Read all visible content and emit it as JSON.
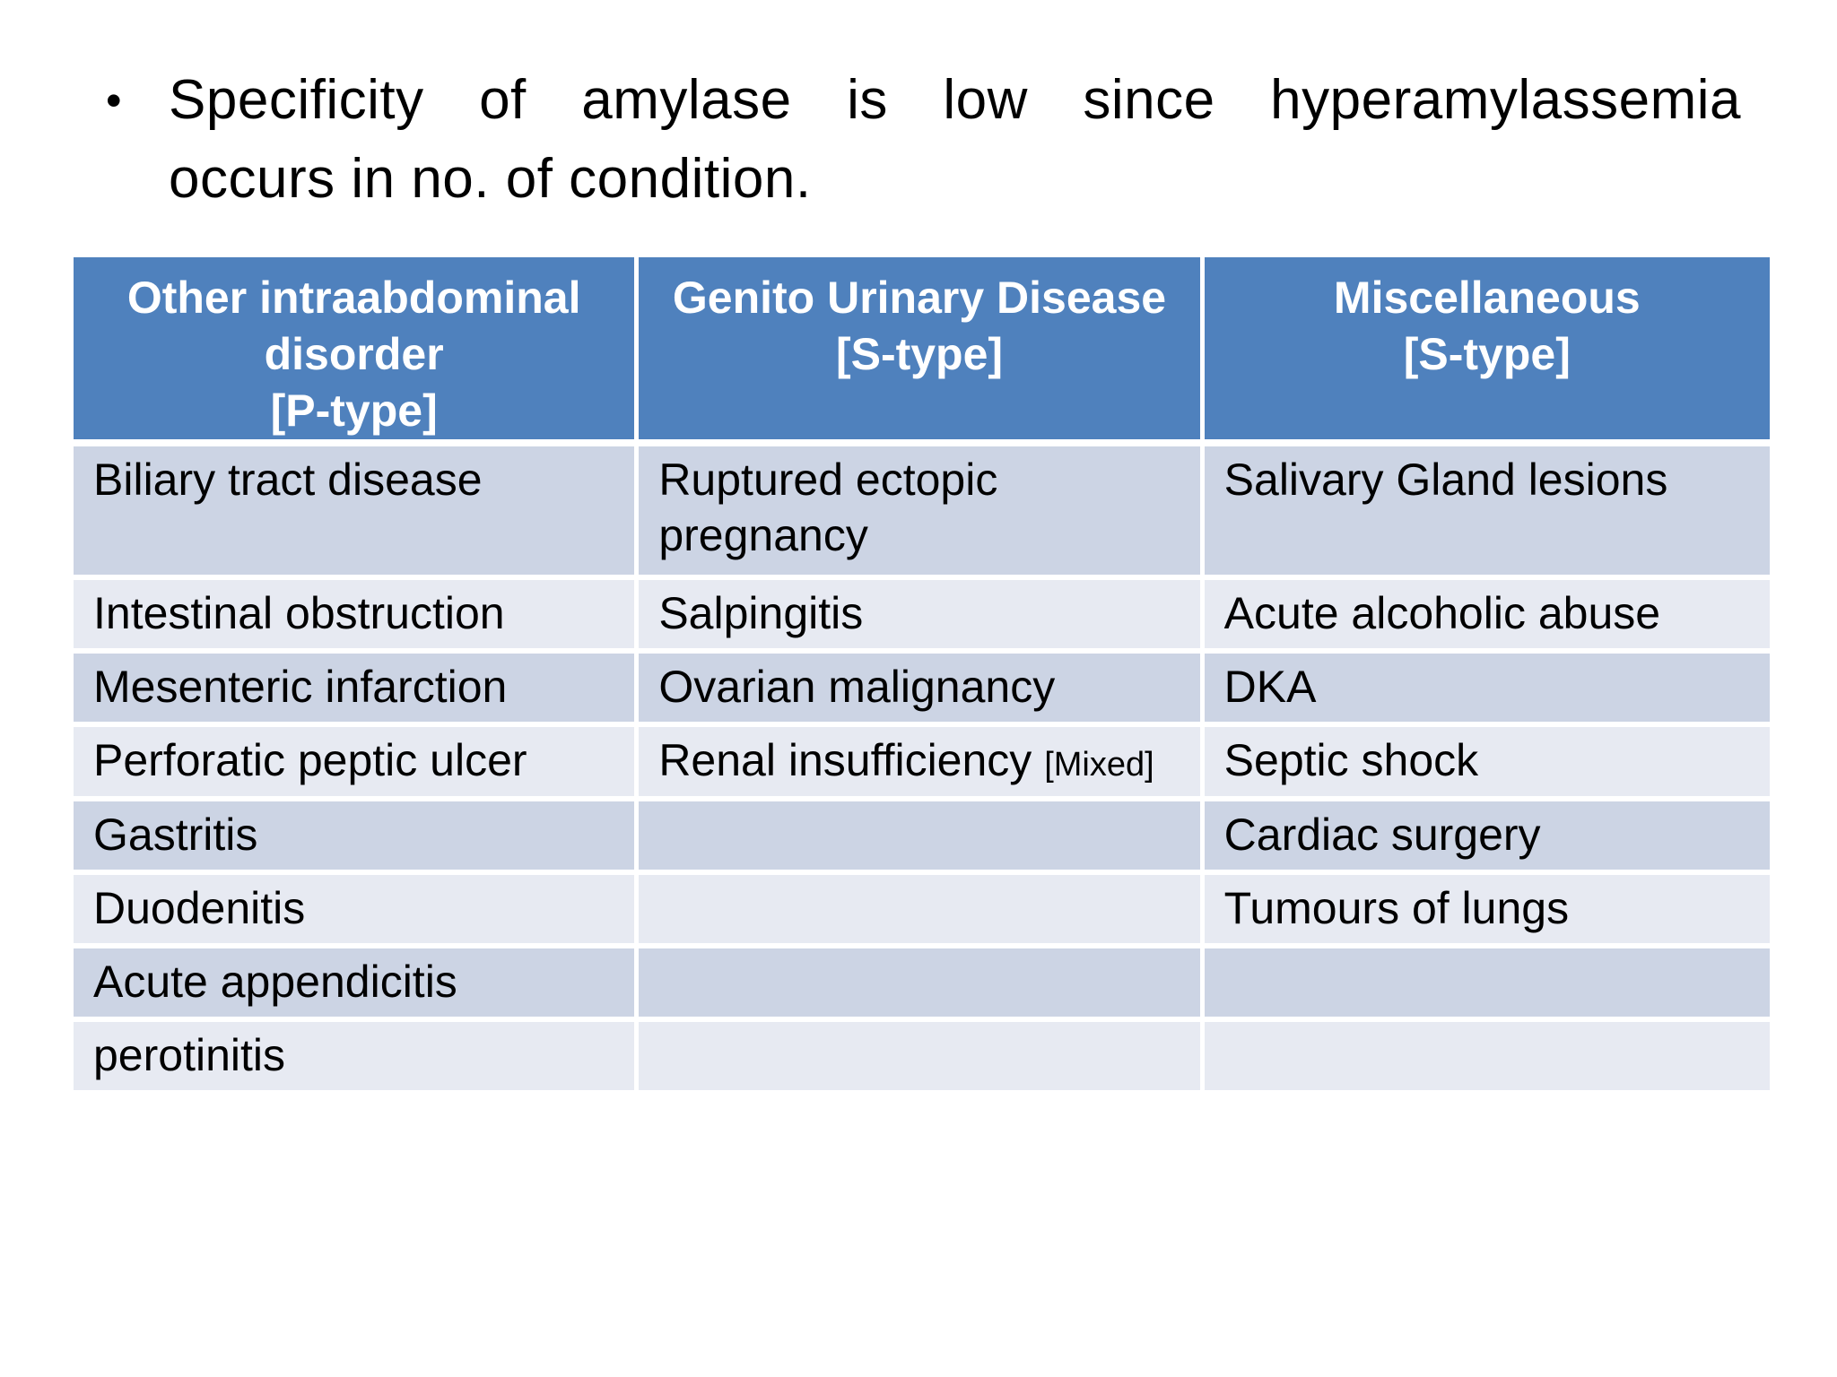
{
  "slide": {
    "bullet": "•",
    "heading_line1": "Specificity of amylase is low since hyperamylassemia",
    "heading_line2": "occurs in no. of condition."
  },
  "colors": {
    "header_bg": "#4f81bd",
    "header_text": "#ffffff",
    "row_band_dark": "#ccd4e4",
    "row_band_light": "#e7eaf2",
    "body_text": "#000000",
    "page_bg": "#ffffff"
  },
  "table": {
    "mixed_tag": "[Mixed]",
    "columns": [
      {
        "header_lines": [
          "Other intraabdominal",
          "disorder",
          "[P-type]"
        ]
      },
      {
        "header_lines": [
          "Genito Urinary Disease",
          "[S-type]",
          ""
        ]
      },
      {
        "header_lines": [
          "Miscellaneous",
          "[S-type]",
          ""
        ]
      }
    ],
    "rows": [
      {
        "cells": [
          "Biliary tract disease",
          "Ruptured ectopic pregnancy",
          "Salivary Gland lesions"
        ]
      },
      {
        "cells": [
          "Intestinal obstruction",
          "Salpingitis",
          "Acute alcoholic abuse"
        ]
      },
      {
        "cells": [
          "Mesenteric infarction",
          "Ovarian malignancy",
          "DKA"
        ]
      },
      {
        "cells": [
          "Perforatic peptic ulcer",
          "Renal insufficiency ",
          "Septic shock"
        ]
      },
      {
        "cells": [
          "Gastritis",
          "",
          "Cardiac surgery"
        ]
      },
      {
        "cells": [
          "Duodenitis",
          "",
          "Tumours of lungs"
        ]
      },
      {
        "cells": [
          "Acute appendicitis",
          "",
          ""
        ]
      },
      {
        "cells": [
          "perotinitis",
          "",
          ""
        ]
      }
    ]
  }
}
